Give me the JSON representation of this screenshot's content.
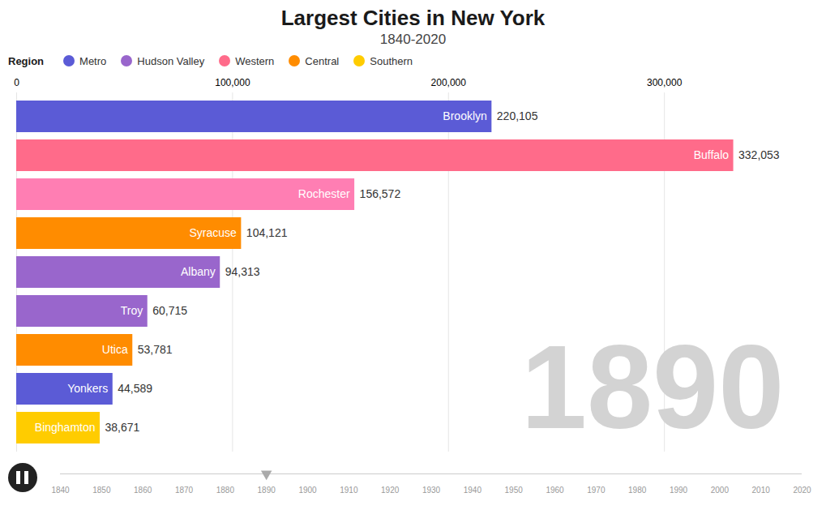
{
  "chart_data": [
    {
      "type": "bar",
      "orientation": "horizontal",
      "title": "Largest Cities in New York",
      "subtitle": "1840-2020",
      "categories": [
        "Brooklyn",
        "Buffalo",
        "Rochester",
        "Syracuse",
        "Albany",
        "Troy",
        "Utica",
        "Yonkers",
        "Binghamton"
      ],
      "values": [
        220105,
        332053,
        156572,
        104121,
        94313,
        60715,
        53781,
        44589,
        38671
      ],
      "value_labels": [
        "220,105",
        "332,053",
        "156,572",
        "104,121",
        "94,313",
        "60,715",
        "53,781",
        "44,589",
        "38,671"
      ],
      "data_labels": true,
      "colors": [
        "#5b5bd6",
        "#ff6b8a",
        "#ff7eb3",
        "#ff8c00",
        "#9966cc",
        "#9966cc",
        "#ff8c00",
        "#5b5bd6",
        "#ffcc00"
      ],
      "xlim": [
        0,
        360000
      ],
      "xticks": [
        0,
        {
          "value": 100000,
          "label": "100,000"
        },
        {
          "value": 200000,
          "label": "200,000"
        },
        {
          "value": 300000,
          "label": "300,000"
        }
      ],
      "grid": true,
      "legend_title": "Region",
      "legend_labels": [
        "Metro",
        "Hudson Valley",
        "Western",
        "Central",
        "Southern"
      ],
      "legend_colors": [
        "#5b5bd6",
        "#9966cc",
        "#ff6b8a",
        "#ff8c00",
        "#ffcc00"
      ],
      "annotation": "1890"
    },
    {
      "type": "timeline",
      "xlim": [
        1840,
        2020
      ],
      "xticks": [
        1840,
        1850,
        1860,
        1870,
        1880,
        1890,
        1900,
        1910,
        1920,
        1930,
        1940,
        1950,
        1960,
        1970,
        1980,
        1990,
        2000,
        2010,
        2020
      ],
      "x": [
        1890
      ],
      "marker": "triangle-down"
    }
  ]
}
